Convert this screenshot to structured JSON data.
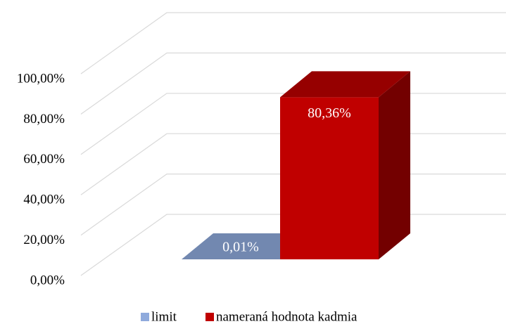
{
  "chart_data": {
    "type": "bar3d",
    "series": [
      {
        "name": "limit",
        "color": "#8faadc",
        "values": [
          0.01
        ],
        "value_labels": [
          "0,01%"
        ]
      },
      {
        "name": "nameraná hodnota kadmia",
        "color": "#c00000",
        "values": [
          80.36
        ],
        "value_labels": [
          "80,36%"
        ]
      }
    ],
    "ylim": [
      0,
      100
    ],
    "yticks": [
      {
        "value": 0,
        "label": "0,00%"
      },
      {
        "value": 20,
        "label": "20,00%"
      },
      {
        "value": 40,
        "label": "40,00%"
      },
      {
        "value": 60,
        "label": "60,00%"
      },
      {
        "value": 80,
        "label": "80,00%"
      },
      {
        "value": 100,
        "label": "100,00%"
      }
    ],
    "grid": true,
    "legend": "bottom"
  }
}
